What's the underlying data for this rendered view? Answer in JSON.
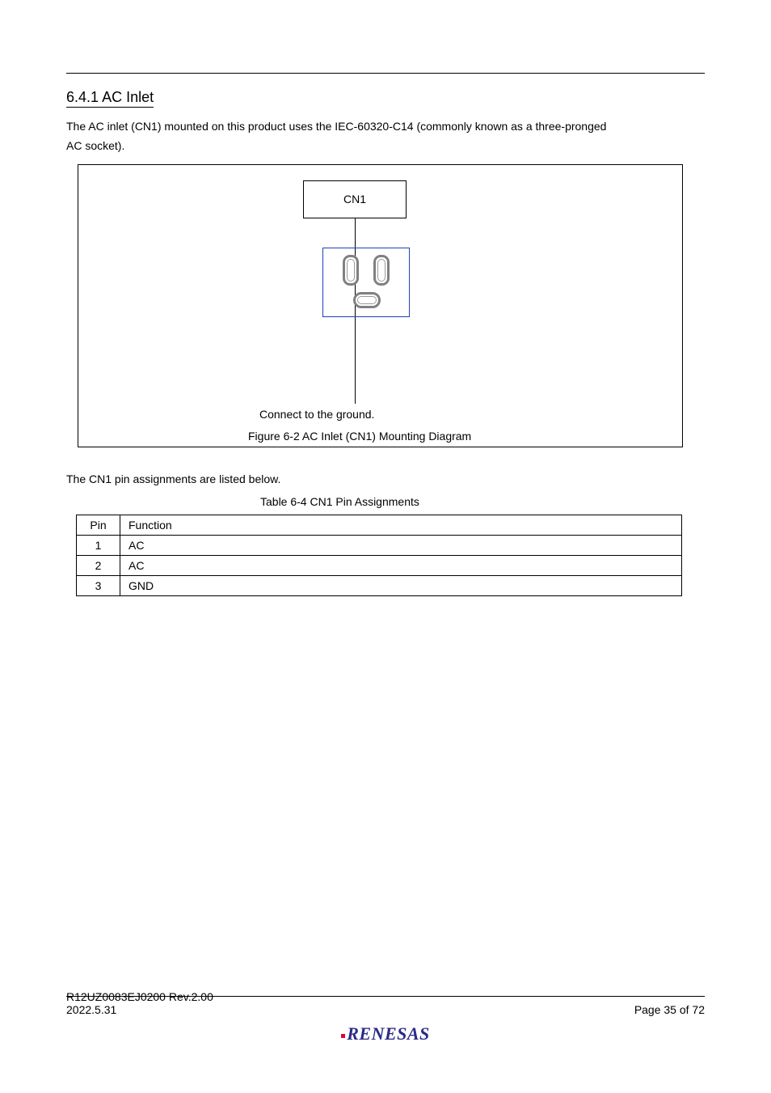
{
  "section": {
    "number": "6.4.1",
    "title": "AC Inlet"
  },
  "body": {
    "line1": "The AC inlet (CN1) mounted on this product uses the IEC-60320-C14 (commonly known as a three-pronged",
    "line2": "AC socket)."
  },
  "figure": {
    "label": "CN1",
    "ground_label": "Connect to the ground.",
    "caption": "Figure 6-2 AC Inlet (CN1) Mounting Diagram",
    "outlet_color": "#2040c0",
    "stroke_color": "#808080"
  },
  "table": {
    "lead": "The CN1 pin assignments are listed below.",
    "caption": "Table 6-4 CN1 Pin Assignments",
    "columns": [
      "Pin",
      "Function"
    ],
    "rows": [
      [
        "1",
        "AC"
      ],
      [
        "2",
        "AC"
      ],
      [
        "3",
        "GND"
      ]
    ]
  },
  "footer": {
    "left": "R12UZ0083EJ0200 Rev.2.00",
    "right": "Page 35 of 72",
    "date": "2022.5.31",
    "logo": "RENESAS"
  }
}
